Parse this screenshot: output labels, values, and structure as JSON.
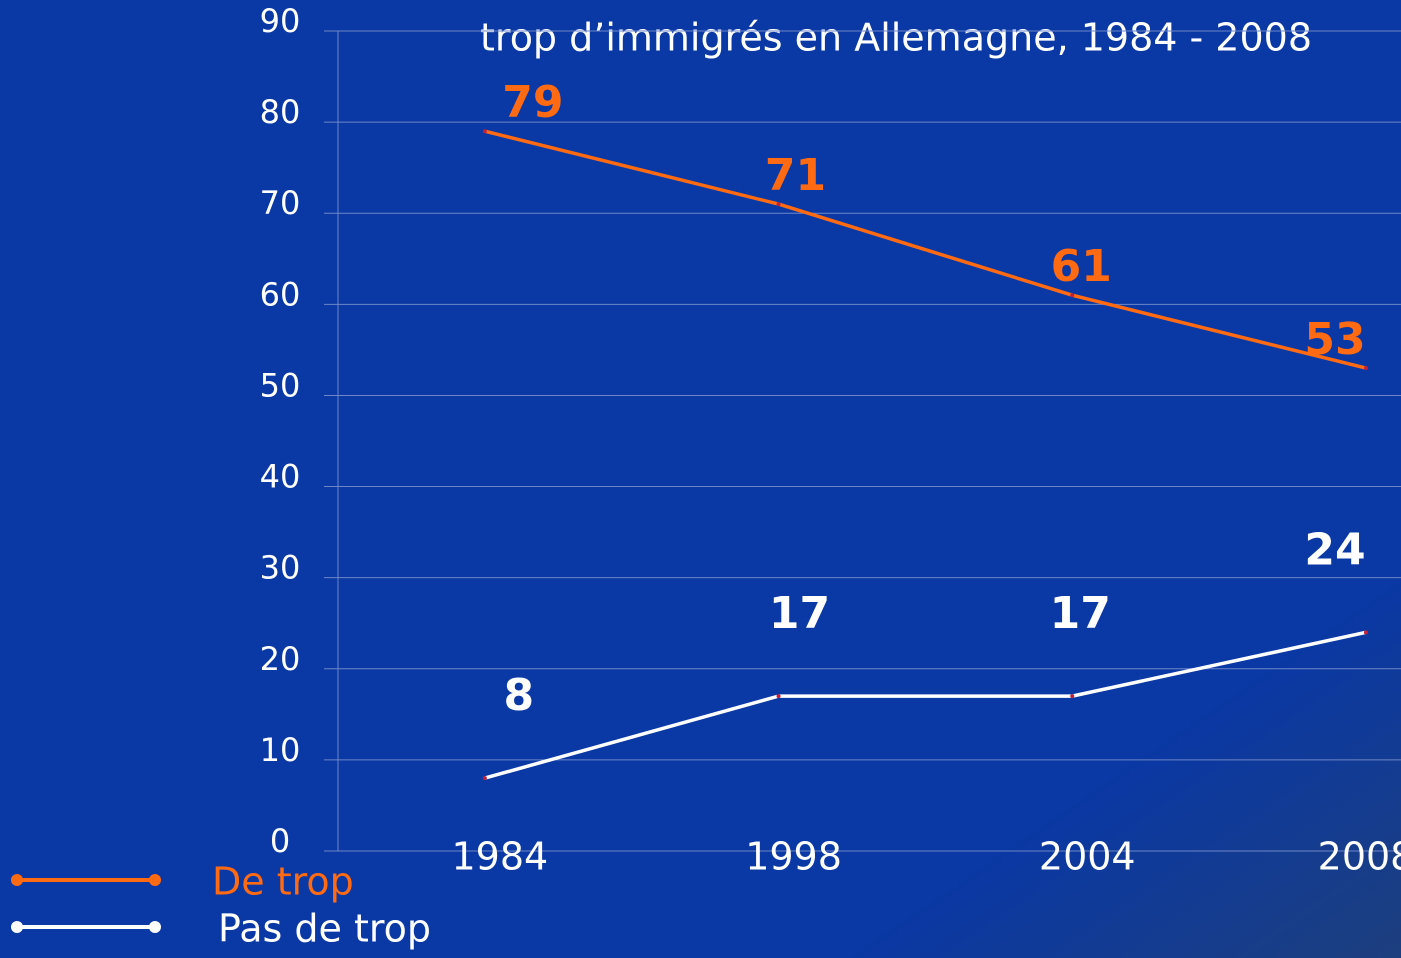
{
  "chart_data": {
    "type": "line",
    "title": "trop d’immigrés en Allemagne, 1984 - 2008",
    "categories": [
      "1984",
      "1998",
      "2004",
      "2008"
    ],
    "series": [
      {
        "name": "De trop",
        "color": "#ff6a13",
        "values": [
          79,
          71,
          61,
          53
        ]
      },
      {
        "name": "Pas de trop",
        "color": "#ffffff",
        "values": [
          8,
          17,
          17,
          24
        ]
      }
    ],
    "ylim": [
      0,
      90
    ],
    "yticks": [
      0,
      10,
      20,
      30,
      40,
      50,
      60,
      70,
      80,
      90
    ],
    "grid": true,
    "legend": "bottom-left"
  }
}
